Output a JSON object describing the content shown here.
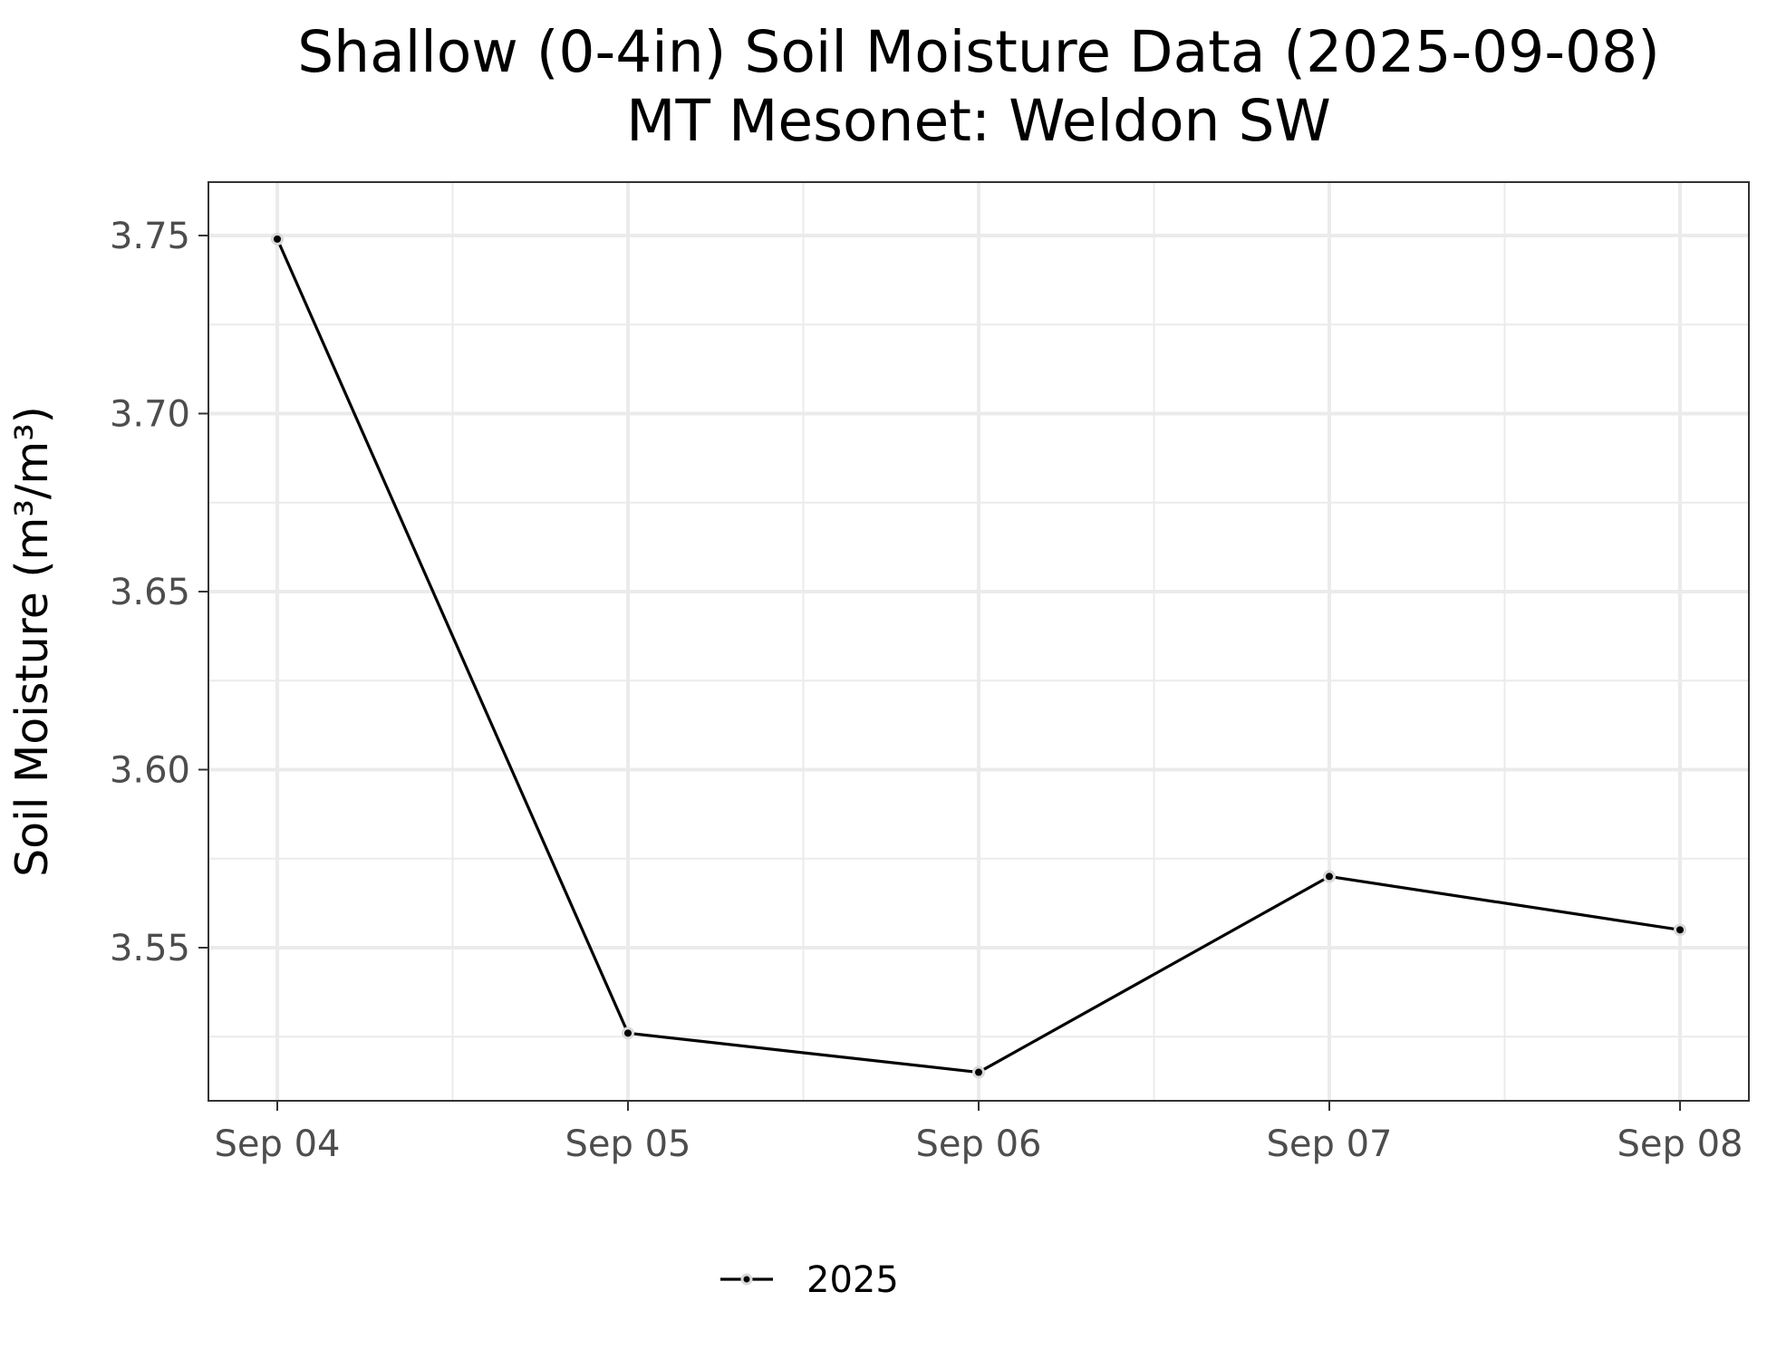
{
  "chart_data": {
    "type": "line",
    "title": "Shallow (0-4in) Soil Moisture Data (2025-09-08)",
    "subtitle": "MT Mesonet: Weldon SW",
    "xlabel": "",
    "ylabel": "Soil Moisture (m³/m³)",
    "categories": [
      "Sep 04",
      "Sep 05",
      "Sep 06",
      "Sep 07",
      "Sep 08"
    ],
    "series": [
      {
        "name": "2025",
        "color": "#000000",
        "values": [
          3.749,
          3.526,
          3.515,
          3.57,
          3.555
        ]
      }
    ],
    "ylim": [
      3.507,
      3.765
    ],
    "yticks": [
      3.55,
      3.6,
      3.65,
      3.7,
      3.75
    ],
    "ytick_labels": [
      "3.55",
      "3.60",
      "3.65",
      "3.70",
      "3.75"
    ],
    "grid": true,
    "legend_position": "bottom"
  }
}
